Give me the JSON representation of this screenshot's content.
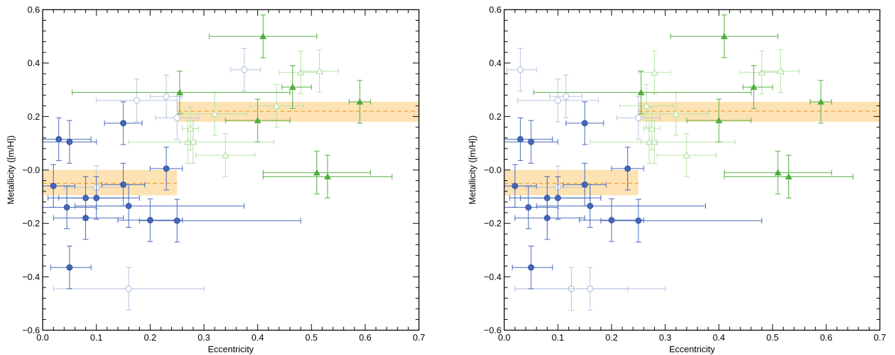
{
  "chart_data": [
    {
      "type": "scatter",
      "xlabel": "Eccentricity",
      "ylabel": "Metallicity ([m/H])",
      "xlim": [
        0.0,
        0.7
      ],
      "ylim": [
        -0.6,
        0.6
      ],
      "x_ticks": [
        "0.0",
        "0.1",
        "0.2",
        "0.3",
        "0.4",
        "0.5",
        "0.6",
        "0.7"
      ],
      "y_ticks": [
        "−0.6",
        "−0.4",
        "−0.2",
        "−0.0",
        "0.2",
        "0.4",
        "0.6"
      ],
      "grid": false,
      "colors": {
        "blue": "#4466b8",
        "blue_light": "#b5c4e0",
        "green": "#4fae3c",
        "green_light": "#b5e2a6",
        "band": "#fde2b4",
        "mean_line": "#f0a22a"
      },
      "bands": [
        {
          "x": [
            0.0,
            0.25
          ],
          "y_mean": -0.05,
          "y_range": [
            -0.095,
            -0.0
          ]
        },
        {
          "x": [
            0.25,
            0.7
          ],
          "y_mean": 0.22,
          "y_range": [
            0.18,
            0.255
          ]
        }
      ],
      "series": [
        {
          "marker": "circle-filled",
          "color": "blue",
          "points": [
            {
              "x": 0.03,
              "y": 0.115,
              "xerr": [
                0.03,
                0.06
              ],
              "yerr": 0.08
            },
            {
              "x": 0.05,
              "y": 0.105,
              "xerr": [
                0.05,
                0.05
              ],
              "yerr": 0.08
            },
            {
              "x": 0.15,
              "y": 0.175,
              "xerr": [
                0.035,
                0.035
              ],
              "yerr": 0.08
            },
            {
              "x": 0.23,
              "y": 0.005,
              "xerr": [
                0.03,
                0.03
              ],
              "yerr": 0.08
            },
            {
              "x": 0.02,
              "y": -0.06,
              "xerr": [
                0.03,
                0.04
              ],
              "yerr": 0.08
            },
            {
              "x": 0.045,
              "y": -0.14,
              "xerr": [
                0.045,
                0.055
              ],
              "yerr": 0.08
            },
            {
              "x": 0.08,
              "y": -0.105,
              "xerr": [
                0.07,
                0.08
              ],
              "yerr": 0.08
            },
            {
              "x": 0.1,
              "y": -0.105,
              "xerr": [
                0.07,
                0.08
              ],
              "yerr": 0.08
            },
            {
              "x": 0.15,
              "y": -0.055,
              "xerr": [
                0.04,
                0.04
              ],
              "yerr": 0.08
            },
            {
              "x": 0.16,
              "y": -0.135,
              "xerr": [
                0.1,
                0.215
              ],
              "yerr": 0.08
            },
            {
              "x": 0.08,
              "y": -0.18,
              "xerr": [
                0.06,
                0.07
              ],
              "yerr": 0.08
            },
            {
              "x": 0.2,
              "y": -0.188,
              "xerr": [
                0.06,
                0.06
              ],
              "yerr": 0.08
            },
            {
              "x": 0.25,
              "y": -0.19,
              "xerr": [
                0.07,
                0.23
              ],
              "yerr": 0.08
            },
            {
              "x": 0.05,
              "y": -0.365,
              "xerr": [
                0.035,
                0.04
              ],
              "yerr": 0.08
            }
          ]
        },
        {
          "marker": "circle-open",
          "color": "blue_light",
          "points": [
            {
              "x": 0.375,
              "y": 0.375,
              "xerr": [
                0.025,
                0.03
              ],
              "yerr": 0.08
            },
            {
              "x": 0.23,
              "y": 0.275,
              "xerr": [
                0.03,
                0.03
              ],
              "yerr": 0.08
            },
            {
              "x": 0.175,
              "y": 0.26,
              "xerr": [
                0.075,
                0.075
              ],
              "yerr": 0.08
            },
            {
              "x": 0.25,
              "y": 0.195,
              "xerr": [
                0.04,
                0.04
              ],
              "yerr": 0.08
            },
            {
              "x": 0.1,
              "y": -0.065,
              "xerr": [
                0.06,
                0.06
              ],
              "yerr": 0.08
            },
            {
              "x": 0.16,
              "y": -0.445,
              "xerr": [
                0.14,
                0.14
              ],
              "yerr": 0.08
            }
          ]
        },
        {
          "marker": "triangle-filled",
          "color": "green",
          "points": [
            {
              "x": 0.41,
              "y": 0.5,
              "xerr": [
                0.1,
                0.1
              ],
              "yerr": 0.08
            },
            {
              "x": 0.465,
              "y": 0.31,
              "xerr": [
                0.02,
                0.035
              ],
              "yerr": 0.08
            },
            {
              "x": 0.255,
              "y": 0.29,
              "xerr": [
                0.2,
                0.205
              ],
              "yerr": 0.08
            },
            {
              "x": 0.59,
              "y": 0.255,
              "xerr": [
                0.02,
                0.02
              ],
              "yerr": 0.08
            },
            {
              "x": 0.4,
              "y": 0.185,
              "xerr": [
                0.06,
                0.06
              ],
              "yerr": 0.08
            },
            {
              "x": 0.53,
              "y": -0.025,
              "xerr": [
                0.12,
                0.12
              ],
              "yerr": 0.08
            },
            {
              "x": 0.51,
              "y": -0.01,
              "xerr": [
                0.1,
                0.1
              ],
              "yerr": 0.08
            }
          ]
        },
        {
          "marker": "triangle-open",
          "color": "green_light",
          "points": [
            {
              "x": 0.48,
              "y": 0.365,
              "xerr": [
                0.04,
                0.04
              ],
              "yerr": 0.08
            },
            {
              "x": 0.515,
              "y": 0.37,
              "xerr": [
                0.035,
                0.035
              ],
              "yerr": 0.08
            },
            {
              "x": 0.435,
              "y": 0.24,
              "xerr": [
                0.05,
                0.05
              ],
              "yerr": 0.08
            },
            {
              "x": 0.32,
              "y": 0.21,
              "xerr": [
                0.06,
                0.06
              ],
              "yerr": 0.08
            },
            {
              "x": 0.275,
              "y": 0.155,
              "xerr": [
                0.015,
                0.015
              ],
              "yerr": 0.08
            },
            {
              "x": 0.27,
              "y": 0.105,
              "xerr": [
                0.015,
                0.015
              ],
              "yerr": 0.08
            },
            {
              "x": 0.28,
              "y": 0.105,
              "xerr": [
                0.12,
                0.15
              ],
              "yerr": 0.08
            },
            {
              "x": 0.34,
              "y": 0.055,
              "xerr": [
                0.055,
                0.055
              ],
              "yerr": 0.08
            }
          ]
        }
      ]
    },
    {
      "type": "scatter",
      "xlabel": "Eccentricity",
      "ylabel": "Metallicity ([m/H])",
      "xlim": [
        0.0,
        0.7
      ],
      "ylim": [
        -0.6,
        0.6
      ],
      "x_ticks": [
        "0.0",
        "0.1",
        "0.2",
        "0.3",
        "0.4",
        "0.5",
        "0.6",
        "0.7"
      ],
      "y_ticks": [
        "−0.6",
        "−0.4",
        "−0.2",
        "−0.0",
        "0.2",
        "0.4",
        "0.6"
      ],
      "grid": false,
      "colors": {
        "blue": "#4466b8",
        "blue_light": "#b5c4e0",
        "green": "#4fae3c",
        "green_light": "#b5e2a6",
        "band": "#fde2b4",
        "mean_line": "#f0a22a"
      },
      "bands": [
        {
          "x": [
            0.0,
            0.25
          ],
          "y_mean": -0.05,
          "y_range": [
            -0.095,
            -0.0
          ]
        },
        {
          "x": [
            0.25,
            0.7
          ],
          "y_mean": 0.22,
          "y_range": [
            0.18,
            0.255
          ]
        }
      ],
      "series": [
        {
          "marker": "circle-filled",
          "color": "blue",
          "points": [
            {
              "x": 0.03,
              "y": 0.115,
              "xerr": [
                0.03,
                0.06
              ],
              "yerr": 0.08
            },
            {
              "x": 0.05,
              "y": 0.105,
              "xerr": [
                0.05,
                0.05
              ],
              "yerr": 0.08
            },
            {
              "x": 0.15,
              "y": 0.175,
              "xerr": [
                0.035,
                0.035
              ],
              "yerr": 0.08
            },
            {
              "x": 0.23,
              "y": 0.005,
              "xerr": [
                0.03,
                0.03
              ],
              "yerr": 0.08
            },
            {
              "x": 0.02,
              "y": -0.06,
              "xerr": [
                0.03,
                0.04
              ],
              "yerr": 0.08
            },
            {
              "x": 0.045,
              "y": -0.14,
              "xerr": [
                0.045,
                0.055
              ],
              "yerr": 0.08
            },
            {
              "x": 0.08,
              "y": -0.105,
              "xerr": [
                0.07,
                0.08
              ],
              "yerr": 0.08
            },
            {
              "x": 0.1,
              "y": -0.105,
              "xerr": [
                0.07,
                0.08
              ],
              "yerr": 0.08
            },
            {
              "x": 0.15,
              "y": -0.055,
              "xerr": [
                0.04,
                0.04
              ],
              "yerr": 0.08
            },
            {
              "x": 0.16,
              "y": -0.135,
              "xerr": [
                0.1,
                0.215
              ],
              "yerr": 0.08
            },
            {
              "x": 0.08,
              "y": -0.18,
              "xerr": [
                0.06,
                0.07
              ],
              "yerr": 0.08
            },
            {
              "x": 0.2,
              "y": -0.188,
              "xerr": [
                0.06,
                0.06
              ],
              "yerr": 0.08
            },
            {
              "x": 0.25,
              "y": -0.19,
              "xerr": [
                0.07,
                0.23
              ],
              "yerr": 0.08
            },
            {
              "x": 0.05,
              "y": -0.365,
              "xerr": [
                0.035,
                0.04
              ],
              "yerr": 0.08
            }
          ]
        },
        {
          "marker": "circle-open",
          "color": "blue_light",
          "points": [
            {
              "x": 0.03,
              "y": 0.375,
              "xerr": [
                0.025,
                0.03
              ],
              "yerr": 0.08
            },
            {
              "x": 0.115,
              "y": 0.275,
              "xerr": [
                0.03,
                0.03
              ],
              "yerr": 0.08
            },
            {
              "x": 0.1,
              "y": 0.26,
              "xerr": [
                0.075,
                0.075
              ],
              "yerr": 0.08
            },
            {
              "x": 0.25,
              "y": 0.195,
              "xerr": [
                0.04,
                0.04
              ],
              "yerr": 0.08
            },
            {
              "x": 0.1,
              "y": -0.065,
              "xerr": [
                0.06,
                0.06
              ],
              "yerr": 0.08
            },
            {
              "x": 0.125,
              "y": -0.445,
              "xerr": [
                0.105,
                0.105
              ],
              "yerr": 0.08
            },
            {
              "x": 0.16,
              "y": -0.445,
              "xerr": [
                0.14,
                0.14
              ],
              "yerr": 0.08
            }
          ]
        },
        {
          "marker": "triangle-filled",
          "color": "green",
          "points": [
            {
              "x": 0.41,
              "y": 0.5,
              "xerr": [
                0.1,
                0.1
              ],
              "yerr": 0.08
            },
            {
              "x": 0.465,
              "y": 0.31,
              "xerr": [
                0.02,
                0.035
              ],
              "yerr": 0.08
            },
            {
              "x": 0.255,
              "y": 0.29,
              "xerr": [
                0.2,
                0.205
              ],
              "yerr": 0.08
            },
            {
              "x": 0.59,
              "y": 0.255,
              "xerr": [
                0.02,
                0.02
              ],
              "yerr": 0.08
            },
            {
              "x": 0.4,
              "y": 0.185,
              "xerr": [
                0.06,
                0.06
              ],
              "yerr": 0.08
            },
            {
              "x": 0.53,
              "y": -0.025,
              "xerr": [
                0.12,
                0.12
              ],
              "yerr": 0.08
            },
            {
              "x": 0.51,
              "y": -0.01,
              "xerr": [
                0.1,
                0.1
              ],
              "yerr": 0.08
            }
          ]
        },
        {
          "marker": "triangle-open",
          "color": "green_light",
          "points": [
            {
              "x": 0.48,
              "y": 0.365,
              "xerr": [
                0.04,
                0.04
              ],
              "yerr": 0.08
            },
            {
              "x": 0.515,
              "y": 0.37,
              "xerr": [
                0.035,
                0.035
              ],
              "yerr": 0.08
            },
            {
              "x": 0.28,
              "y": 0.365,
              "xerr": [
                0.03,
                0.03
              ],
              "yerr": 0.08
            },
            {
              "x": 0.265,
              "y": 0.24,
              "xerr": [
                0.05,
                0.05
              ],
              "yerr": 0.08
            },
            {
              "x": 0.32,
              "y": 0.21,
              "xerr": [
                0.06,
                0.06
              ],
              "yerr": 0.08
            },
            {
              "x": 0.275,
              "y": 0.155,
              "xerr": [
                0.015,
                0.015
              ],
              "yerr": 0.08
            },
            {
              "x": 0.27,
              "y": 0.105,
              "xerr": [
                0.015,
                0.015
              ],
              "yerr": 0.08
            },
            {
              "x": 0.28,
              "y": 0.105,
              "xerr": [
                0.12,
                0.15
              ],
              "yerr": 0.08
            },
            {
              "x": 0.34,
              "y": 0.055,
              "xerr": [
                0.055,
                0.055
              ],
              "yerr": 0.08
            }
          ]
        }
      ]
    }
  ]
}
